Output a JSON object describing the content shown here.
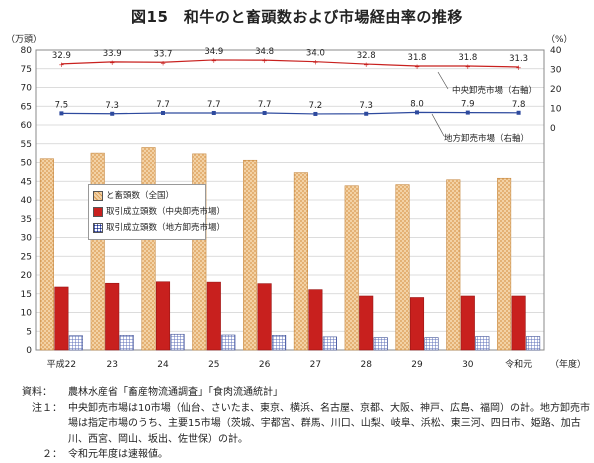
{
  "title": "図15　和牛のと畜頭数および市場経由率の推移",
  "chart_data": {
    "type": "bar",
    "categories": [
      "平成22",
      "23",
      "24",
      "25",
      "26",
      "27",
      "28",
      "29",
      "30",
      "令和元"
    ],
    "xlabel": "（年度）",
    "y_left": {
      "unit": "（万頭）",
      "range": [
        0,
        80
      ],
      "ticks": [
        "0",
        "5",
        "10",
        "15",
        "20",
        "25",
        "30",
        "35",
        "40",
        "45",
        "50",
        "55",
        "60",
        "65",
        "70",
        "75",
        "80"
      ]
    },
    "y_right": {
      "unit": "（%）",
      "range": [
        0,
        40
      ],
      "ticks": [
        "0",
        "10",
        "20",
        "30",
        "40"
      ]
    },
    "series": [
      {
        "name": "と畜頭数（全国）",
        "kind": "bar",
        "axis": "left",
        "color": "#e8b77a",
        "values": [
          51,
          52.5,
          54,
          52.3,
          50.6,
          47.3,
          43.8,
          44.1,
          45.4,
          45.8
        ]
      },
      {
        "name": "取引成立頭数（中央卸売市場）",
        "kind": "bar",
        "axis": "left",
        "color": "#c8201e",
        "values": [
          16.8,
          17.8,
          18.2,
          18.1,
          17.7,
          16.1,
          14.4,
          14,
          14.4,
          14.4
        ]
      },
      {
        "name": "取引成立頭数（地方卸売市場）",
        "kind": "bar",
        "axis": "left",
        "color": "#5d6fb8",
        "values": [
          3.8,
          3.9,
          4.2,
          4.0,
          3.9,
          3.5,
          3.3,
          3.3,
          3.6,
          3.6
        ]
      },
      {
        "name": "中央卸売市場（右軸）",
        "kind": "line",
        "axis": "right",
        "color": "#c8201e",
        "labels": [
          "32.9",
          "33.9",
          "33.7",
          "34.9",
          "34.8",
          "34.0",
          "32.8",
          "31.8",
          "31.8",
          "31.3"
        ],
        "values": [
          32.9,
          33.9,
          33.7,
          34.9,
          34.8,
          34.0,
          32.8,
          31.8,
          31.8,
          31.3
        ]
      },
      {
        "name": "地方卸売市場（右軸）",
        "kind": "line",
        "axis": "right",
        "color": "#2e4a9e",
        "labels": [
          "7.5",
          "7.3",
          "7.7",
          "7.7",
          "7.7",
          "7.2",
          "7.3",
          "8.0",
          "7.9",
          "7.8"
        ],
        "values": [
          7.5,
          7.3,
          7.7,
          7.7,
          7.7,
          7.2,
          7.3,
          8.0,
          7.9,
          7.8
        ]
      }
    ],
    "grid": true,
    "legend_position": "left-middle"
  },
  "legend": {
    "items": [
      {
        "label": "と畜頭数（全国）",
        "color": "#e8b77a"
      },
      {
        "label": "取引成立頭数（中央卸売市場）",
        "color": "#c8201e"
      },
      {
        "label": "取引成立頭数（地方卸売市場）",
        "color": "#5d6fb8"
      }
    ]
  },
  "notes": [
    {
      "label": "資料：",
      "text": "農林水産省「畜産物流通調査」「食肉流通統計」"
    },
    {
      "label": "注１：",
      "text": "中央卸売市場は10市場（仙台、さいたま、東京、横浜、名古屋、京都、大阪、神戸、広島、福岡）の計。地方卸売市場は指定市場のうち、主要15市場（茨城、宇都宮、群馬、川口、山梨、岐阜、浜松、東三河、四日市、姫路、加古川、西宮、岡山、坂出、佐世保）の計。"
    },
    {
      "label": "２：",
      "text": "令和元年度は速報値。"
    }
  ]
}
